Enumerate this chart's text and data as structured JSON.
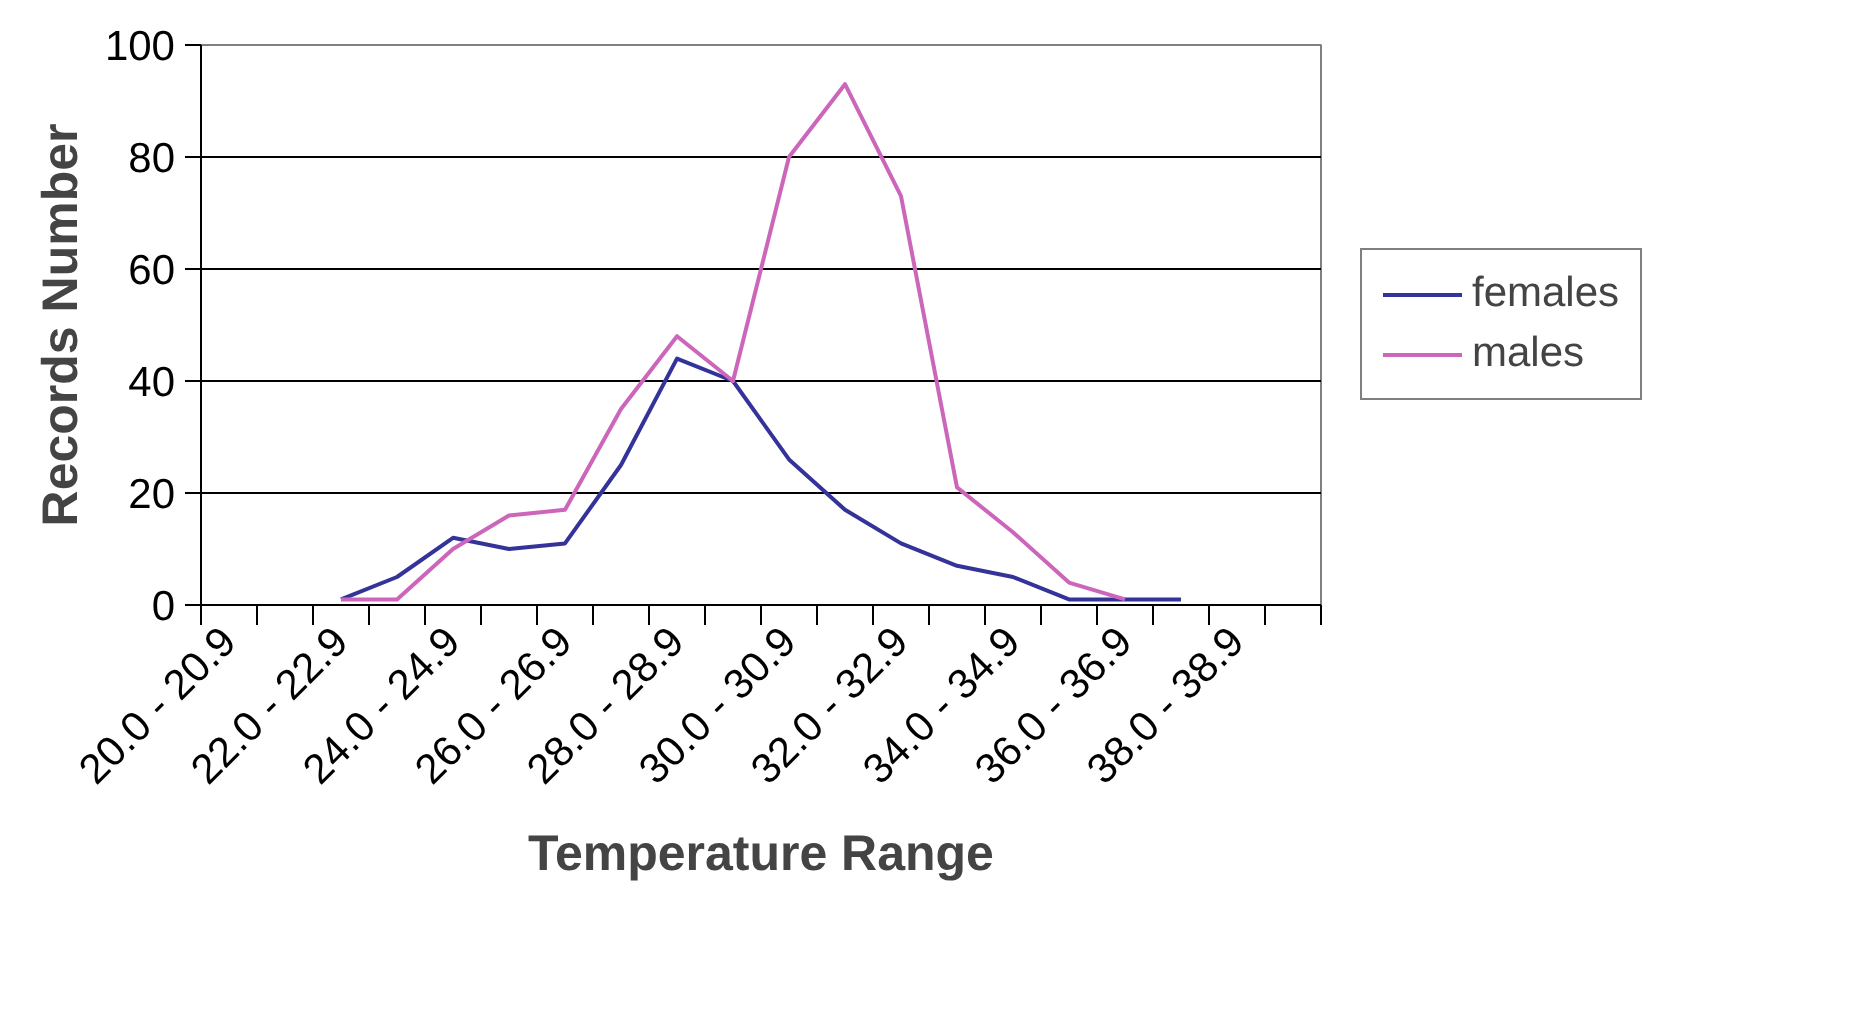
{
  "chart_data": {
    "type": "line",
    "xlabel": "Temperature Range",
    "ylabel": "Records Number",
    "categories": [
      "20.0 - 20.9",
      null,
      "22.0 - 22.9",
      null,
      "24.0 - 24.9",
      null,
      "26.0 - 26.9",
      null,
      "28.0 - 28.9",
      null,
      "30.0 - 30.9",
      null,
      "32.0 - 32.9",
      null,
      "34.0 - 34.9",
      null,
      "36.0 - 36.9",
      null,
      "38.0 - 38.9",
      null
    ],
    "series": [
      {
        "name": "females",
        "color": "#333399",
        "values": [
          null,
          null,
          1,
          5,
          12,
          10,
          11,
          25,
          44,
          40,
          26,
          17,
          11,
          7,
          5,
          1,
          1,
          1,
          null,
          null
        ]
      },
      {
        "name": "males",
        "color": "#cc66bb",
        "values": [
          null,
          null,
          1,
          1,
          10,
          16,
          17,
          35,
          48,
          40,
          80,
          93,
          73,
          21,
          13,
          4,
          1,
          null,
          null,
          null
        ]
      }
    ],
    "ylim": [
      0,
      100
    ],
    "yticks": [
      0,
      20,
      40,
      60,
      80,
      100
    ],
    "grid": "y",
    "legend": "right",
    "marker": "none",
    "line_style": "solid"
  }
}
